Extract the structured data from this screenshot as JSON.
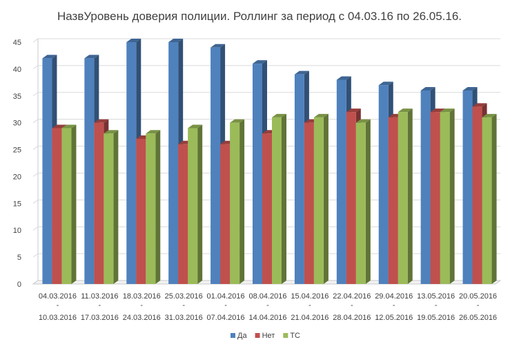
{
  "chart_data": {
    "type": "bar",
    "title": "НазвУровень доверия полиции. Роллинг за период с 04.03.16 по 26.05.16.",
    "categories": [
      [
        "04.03.2016",
        "-",
        "10.03.2016"
      ],
      [
        "11.03.2016",
        "-",
        "17.03.2016"
      ],
      [
        "18.03.2016",
        "-",
        "24.03.2016"
      ],
      [
        "25.03.2016",
        "-",
        "31.03.2016"
      ],
      [
        "01.04.2016",
        "-",
        "07.04.2016"
      ],
      [
        "08.04.2016",
        "-",
        "14.04.2016"
      ],
      [
        "15.04.2016",
        "-",
        "21.04.2016"
      ],
      [
        "22.04.2016",
        "-",
        "28.04.2016"
      ],
      [
        "29.04.2016",
        "-",
        "12.05.2016"
      ],
      [
        "13.05.2016",
        "-",
        "19.05.2016"
      ],
      [
        "20.05.2016",
        "-",
        "26.05.2016"
      ]
    ],
    "series": [
      {
        "name": "Да",
        "color": "#4f81bd",
        "values": [
          42,
          42,
          45,
          45,
          44,
          41,
          39,
          38,
          37,
          36,
          36
        ]
      },
      {
        "name": "Нет",
        "color": "#c0504d",
        "values": [
          29,
          30,
          27,
          26,
          26,
          28,
          30,
          32,
          31,
          32,
          33
        ]
      },
      {
        "name": "ТС",
        "color": "#9bbb59",
        "values": [
          29,
          28,
          28,
          29,
          30,
          31,
          31,
          30,
          32,
          32,
          31
        ]
      }
    ],
    "ylim": [
      0,
      45
    ],
    "yticks": [
      "0",
      "5",
      "10",
      "15",
      "20",
      "25",
      "30",
      "35",
      "40",
      "45"
    ],
    "grid": true,
    "legend": "bottom"
  }
}
